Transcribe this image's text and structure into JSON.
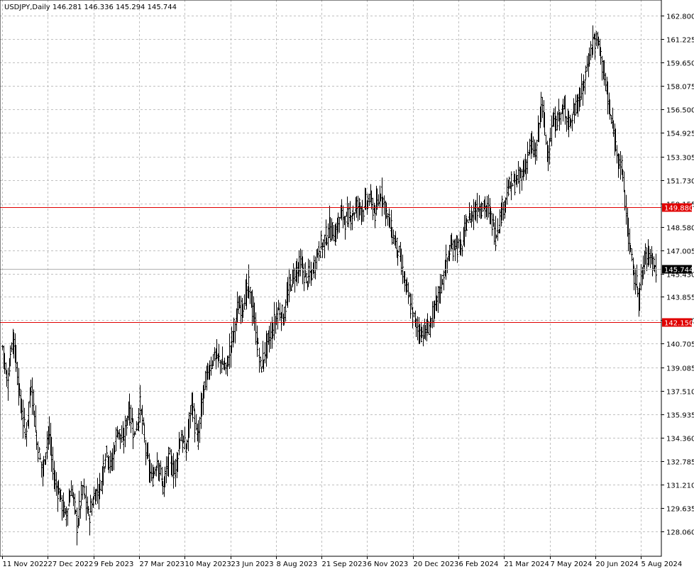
{
  "header": {
    "symbol": "USDJPY,Daily",
    "ohlc": "146.281 146.336 145.294 145.744"
  },
  "chart_data": {
    "type": "ohlc-bar",
    "ylim": [
      126.485,
      163.575
    ],
    "yticks": [
      128.06,
      129.635,
      131.21,
      132.785,
      134.36,
      135.935,
      137.51,
      139.085,
      140.705,
      142.28,
      143.855,
      145.43,
      147.005,
      148.58,
      150.155,
      151.73,
      153.305,
      154.925,
      156.5,
      158.075,
      159.65,
      161.225,
      162.8
    ],
    "ytick_labels": [
      "128.060",
      "129.635",
      "131.210",
      "132.785",
      "134.360",
      "135.935",
      "137.510",
      "139.085",
      "140.705",
      "142.280",
      "143.855",
      "145.430",
      "147.005",
      "148.580",
      "150.155",
      "151.730",
      "153.305",
      "154.925",
      "156.500",
      "158.075",
      "159.650",
      "161.225",
      "162.800"
    ],
    "xticks": [
      "11 Nov 2022",
      "27 Dec 2022",
      "9 Feb 2023",
      "27 Mar 2023",
      "10 May 2023",
      "23 Jun 2023",
      "8 Aug 2023",
      "21 Sep 2023",
      "6 Nov 2023",
      "20 Dec 2023",
      "6 Feb 2024",
      "21 Mar 2024",
      "7 May 2024",
      "20 Jun 2024",
      "5 Aug 2024"
    ],
    "last_price": 145.744,
    "last_price_label": "145.744",
    "hlines": [
      {
        "value": 149.88,
        "label": "149.880",
        "color": "#e00000"
      },
      {
        "value": 142.15,
        "label": "142.150",
        "color": "#e00000"
      }
    ],
    "anchors": [
      [
        0,
        140.5
      ],
      [
        4,
        138.0
      ],
      [
        9,
        141.5
      ],
      [
        15,
        137.0
      ],
      [
        20,
        134.5
      ],
      [
        25,
        138.0
      ],
      [
        30,
        134.0
      ],
      [
        35,
        132.0
      ],
      [
        40,
        135.0
      ],
      [
        45,
        131.5
      ],
      [
        50,
        130.5
      ],
      [
        55,
        129.0
      ],
      [
        60,
        131.0
      ],
      [
        65,
        128.5
      ],
      [
        70,
        131.0
      ],
      [
        75,
        129.0
      ],
      [
        80,
        130.5
      ],
      [
        85,
        131.0
      ],
      [
        90,
        133.5
      ],
      [
        95,
        132.5
      ],
      [
        100,
        135.0
      ],
      [
        105,
        134.0
      ],
      [
        110,
        136.5
      ],
      [
        115,
        134.5
      ],
      [
        120,
        136.5
      ],
      [
        125,
        133.5
      ],
      [
        130,
        131.5
      ],
      [
        135,
        133.0
      ],
      [
        140,
        131.0
      ],
      [
        145,
        133.0
      ],
      [
        150,
        132.0
      ],
      [
        155,
        134.5
      ],
      [
        160,
        133.5
      ],
      [
        165,
        137.0
      ],
      [
        170,
        134.0
      ],
      [
        175,
        137.5
      ],
      [
        180,
        139.0
      ],
      [
        185,
        140.0
      ],
      [
        190,
        139.5
      ],
      [
        195,
        139.0
      ],
      [
        200,
        141.0
      ],
      [
        205,
        143.0
      ],
      [
        210,
        143.5
      ],
      [
        215,
        144.5
      ],
      [
        220,
        142.0
      ],
      [
        225,
        139.0
      ],
      [
        230,
        140.5
      ],
      [
        235,
        141.5
      ],
      [
        240,
        143.0
      ],
      [
        245,
        142.5
      ],
      [
        250,
        144.5
      ],
      [
        255,
        145.5
      ],
      [
        260,
        146.0
      ],
      [
        265,
        145.0
      ],
      [
        270,
        145.5
      ],
      [
        275,
        147.0
      ],
      [
        280,
        147.5
      ],
      [
        285,
        148.5
      ],
      [
        290,
        148.0
      ],
      [
        295,
        149.5
      ],
      [
        300,
        149.0
      ],
      [
        305,
        149.5
      ],
      [
        310,
        150.0
      ],
      [
        315,
        149.8
      ],
      [
        320,
        150.5
      ],
      [
        325,
        149.5
      ],
      [
        330,
        151.0
      ],
      [
        335,
        149.5
      ],
      [
        340,
        148.0
      ],
      [
        345,
        147.0
      ],
      [
        350,
        145.0
      ],
      [
        355,
        143.5
      ],
      [
        360,
        142.0
      ],
      [
        365,
        141.5
      ],
      [
        370,
        141.5
      ],
      [
        375,
        142.5
      ],
      [
        380,
        144.0
      ],
      [
        385,
        145.5
      ],
      [
        390,
        147.0
      ],
      [
        395,
        147.5
      ],
      [
        400,
        147.0
      ],
      [
        405,
        149.0
      ],
      [
        410,
        149.5
      ],
      [
        415,
        150.0
      ],
      [
        420,
        150.0
      ],
      [
        425,
        149.5
      ],
      [
        430,
        148.0
      ],
      [
        435,
        149.5
      ],
      [
        440,
        151.0
      ],
      [
        445,
        151.5
      ],
      [
        450,
        151.7
      ],
      [
        455,
        152.5
      ],
      [
        460,
        154.0
      ],
      [
        465,
        153.5
      ],
      [
        470,
        157.0
      ],
      [
        475,
        153.5
      ],
      [
        480,
        155.5
      ],
      [
        485,
        156.0
      ],
      [
        490,
        156.5
      ],
      [
        495,
        155.5
      ],
      [
        500,
        156.8
      ],
      [
        505,
        157.5
      ],
      [
        510,
        159.5
      ],
      [
        515,
        161.2
      ],
      [
        520,
        161.0
      ],
      [
        525,
        158.5
      ],
      [
        530,
        156.0
      ],
      [
        535,
        154.0
      ],
      [
        540,
        152.5
      ],
      [
        545,
        148.5
      ],
      [
        550,
        145.5
      ],
      [
        555,
        144.0
      ],
      [
        560,
        146.5
      ],
      [
        565,
        146.8
      ],
      [
        570,
        145.7
      ]
    ]
  }
}
